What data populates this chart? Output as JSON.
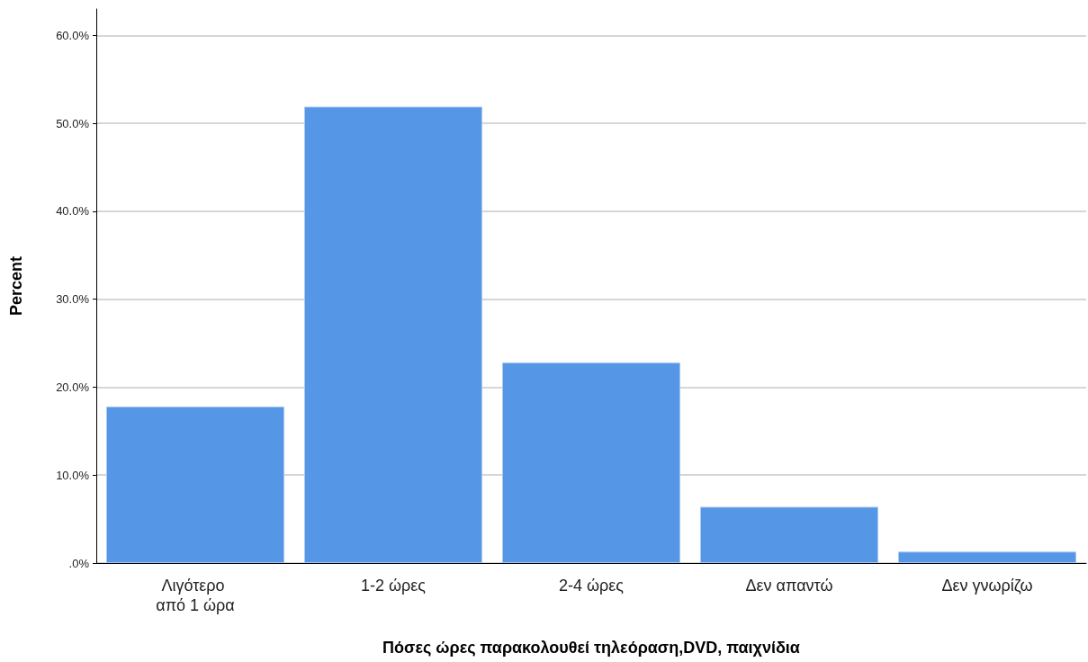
{
  "chart_data": {
    "type": "bar",
    "xlabel": "Πόσες ώρες παρακολουθεί τηλεόραση,DVD, παιχνίδια",
    "ylabel": "Percent",
    "categories": [
      "Λιγότερο από 1 ώρα",
      "1-2 ώρες",
      "2-4 ώρες",
      "Δεν απαντώ",
      "Δεν γνωρίζω"
    ],
    "values": [
      17.8,
      51.9,
      22.8,
      6.4,
      1.3
    ],
    "color": "#5596e6",
    "ylim": [
      0,
      63
    ],
    "yticks": [
      {
        "value": 0,
        "label": ".0%"
      },
      {
        "value": 10,
        "label": "10.0%"
      },
      {
        "value": 20,
        "label": "20.0%"
      },
      {
        "value": 30,
        "label": "30.0%"
      },
      {
        "value": 40,
        "label": "40.0%"
      },
      {
        "value": 50,
        "label": "50.0%"
      },
      {
        "value": 60,
        "label": "60.0%"
      }
    ],
    "grid": "y"
  }
}
